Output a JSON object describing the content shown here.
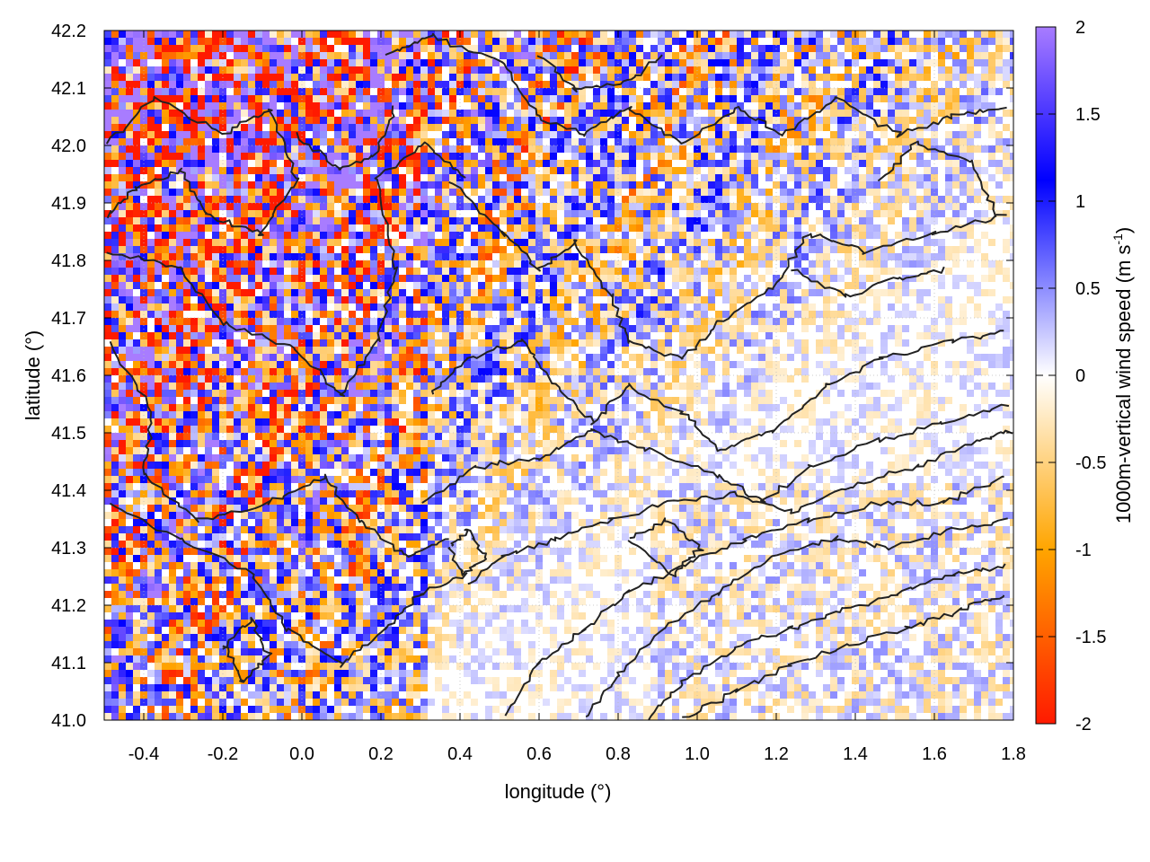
{
  "chart_data": {
    "type": "heatmap",
    "title": "",
    "xlabel": "longitude (°)",
    "ylabel": "latitude (°)",
    "xlim": [
      -0.5,
      1.8
    ],
    "ylim": [
      41.0,
      42.2
    ],
    "xticks": [
      "-0.4",
      "-0.2",
      "0.0",
      "0.2",
      "0.4",
      "0.6",
      "0.8",
      "1.0",
      "1.2",
      "1.4",
      "1.6",
      "1.8"
    ],
    "yticks": [
      "41.0",
      "41.1",
      "41.2",
      "41.3",
      "41.4",
      "41.5",
      "41.6",
      "41.7",
      "41.8",
      "41.9",
      "42.0",
      "42.1",
      "42.2"
    ],
    "grid": true,
    "overlay": "terrain contour lines",
    "colorbar": {
      "label_main": "1000m-vertical wind speed (m s",
      "label_sup": "-1",
      "label_end": ")",
      "range": [
        -2,
        2
      ],
      "ticks": [
        "2",
        "1.5",
        "1",
        "0.5",
        "0",
        "-0.5",
        "-1",
        "-1.5",
        "-2"
      ],
      "colors": [
        "#ff1a00",
        "#ffa500",
        "#ffffff",
        "#0000ff",
        "#a87cff"
      ]
    }
  }
}
